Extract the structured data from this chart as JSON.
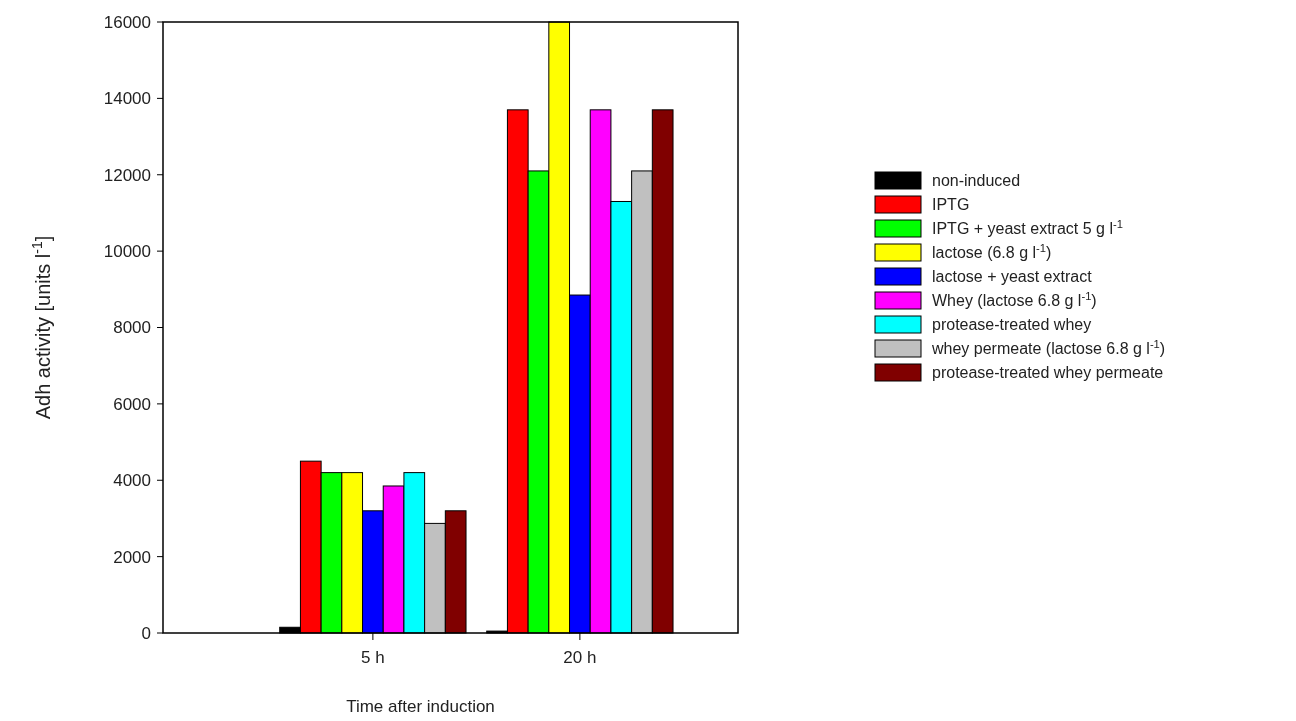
{
  "chart_data": {
    "type": "bar",
    "xlabel": "Time after induction",
    "ylabel": "Adh activity [units l$^{-1}$]",
    "categories": [
      "5 h",
      "20 h"
    ],
    "series": [
      {
        "name": "non-induced",
        "color": "#000000",
        "values": [
          150,
          50
        ]
      },
      {
        "name": "IPTG",
        "color": "#ff0000",
        "values": [
          4500,
          13700
        ]
      },
      {
        "name": "IPTG + yeast extract 5 g l$^{-1}$",
        "color": "#00ff00",
        "values": [
          4200,
          12100
        ]
      },
      {
        "name": "lactose (6.8 g l$^{-1}$)",
        "color": "#ffff00",
        "values": [
          4200,
          16000
        ]
      },
      {
        "name": "lactose + yeast extract",
        "color": "#0000ff",
        "values": [
          3200,
          8850
        ]
      },
      {
        "name": "Whey (lactose 6.8 g l$^{-1}$)",
        "color": "#ff00ff",
        "values": [
          3850,
          13700
        ]
      },
      {
        "name": "protease-treated whey",
        "color": "#00ffff",
        "values": [
          4200,
          11300
        ]
      },
      {
        "name": "whey permeate (lactose 6.8 g l$^{-1}$)",
        "color": "#c0c0c0",
        "values": [
          2870,
          12100
        ]
      },
      {
        "name": "protease-treated whey permeate",
        "color": "#800000",
        "values": [
          3200,
          13700
        ]
      }
    ],
    "ylim": [
      0,
      16000
    ],
    "yticks": [
      0,
      2000,
      4000,
      6000,
      8000,
      10000,
      12000,
      14000,
      16000
    ],
    "legend": "right",
    "grid": false
  }
}
